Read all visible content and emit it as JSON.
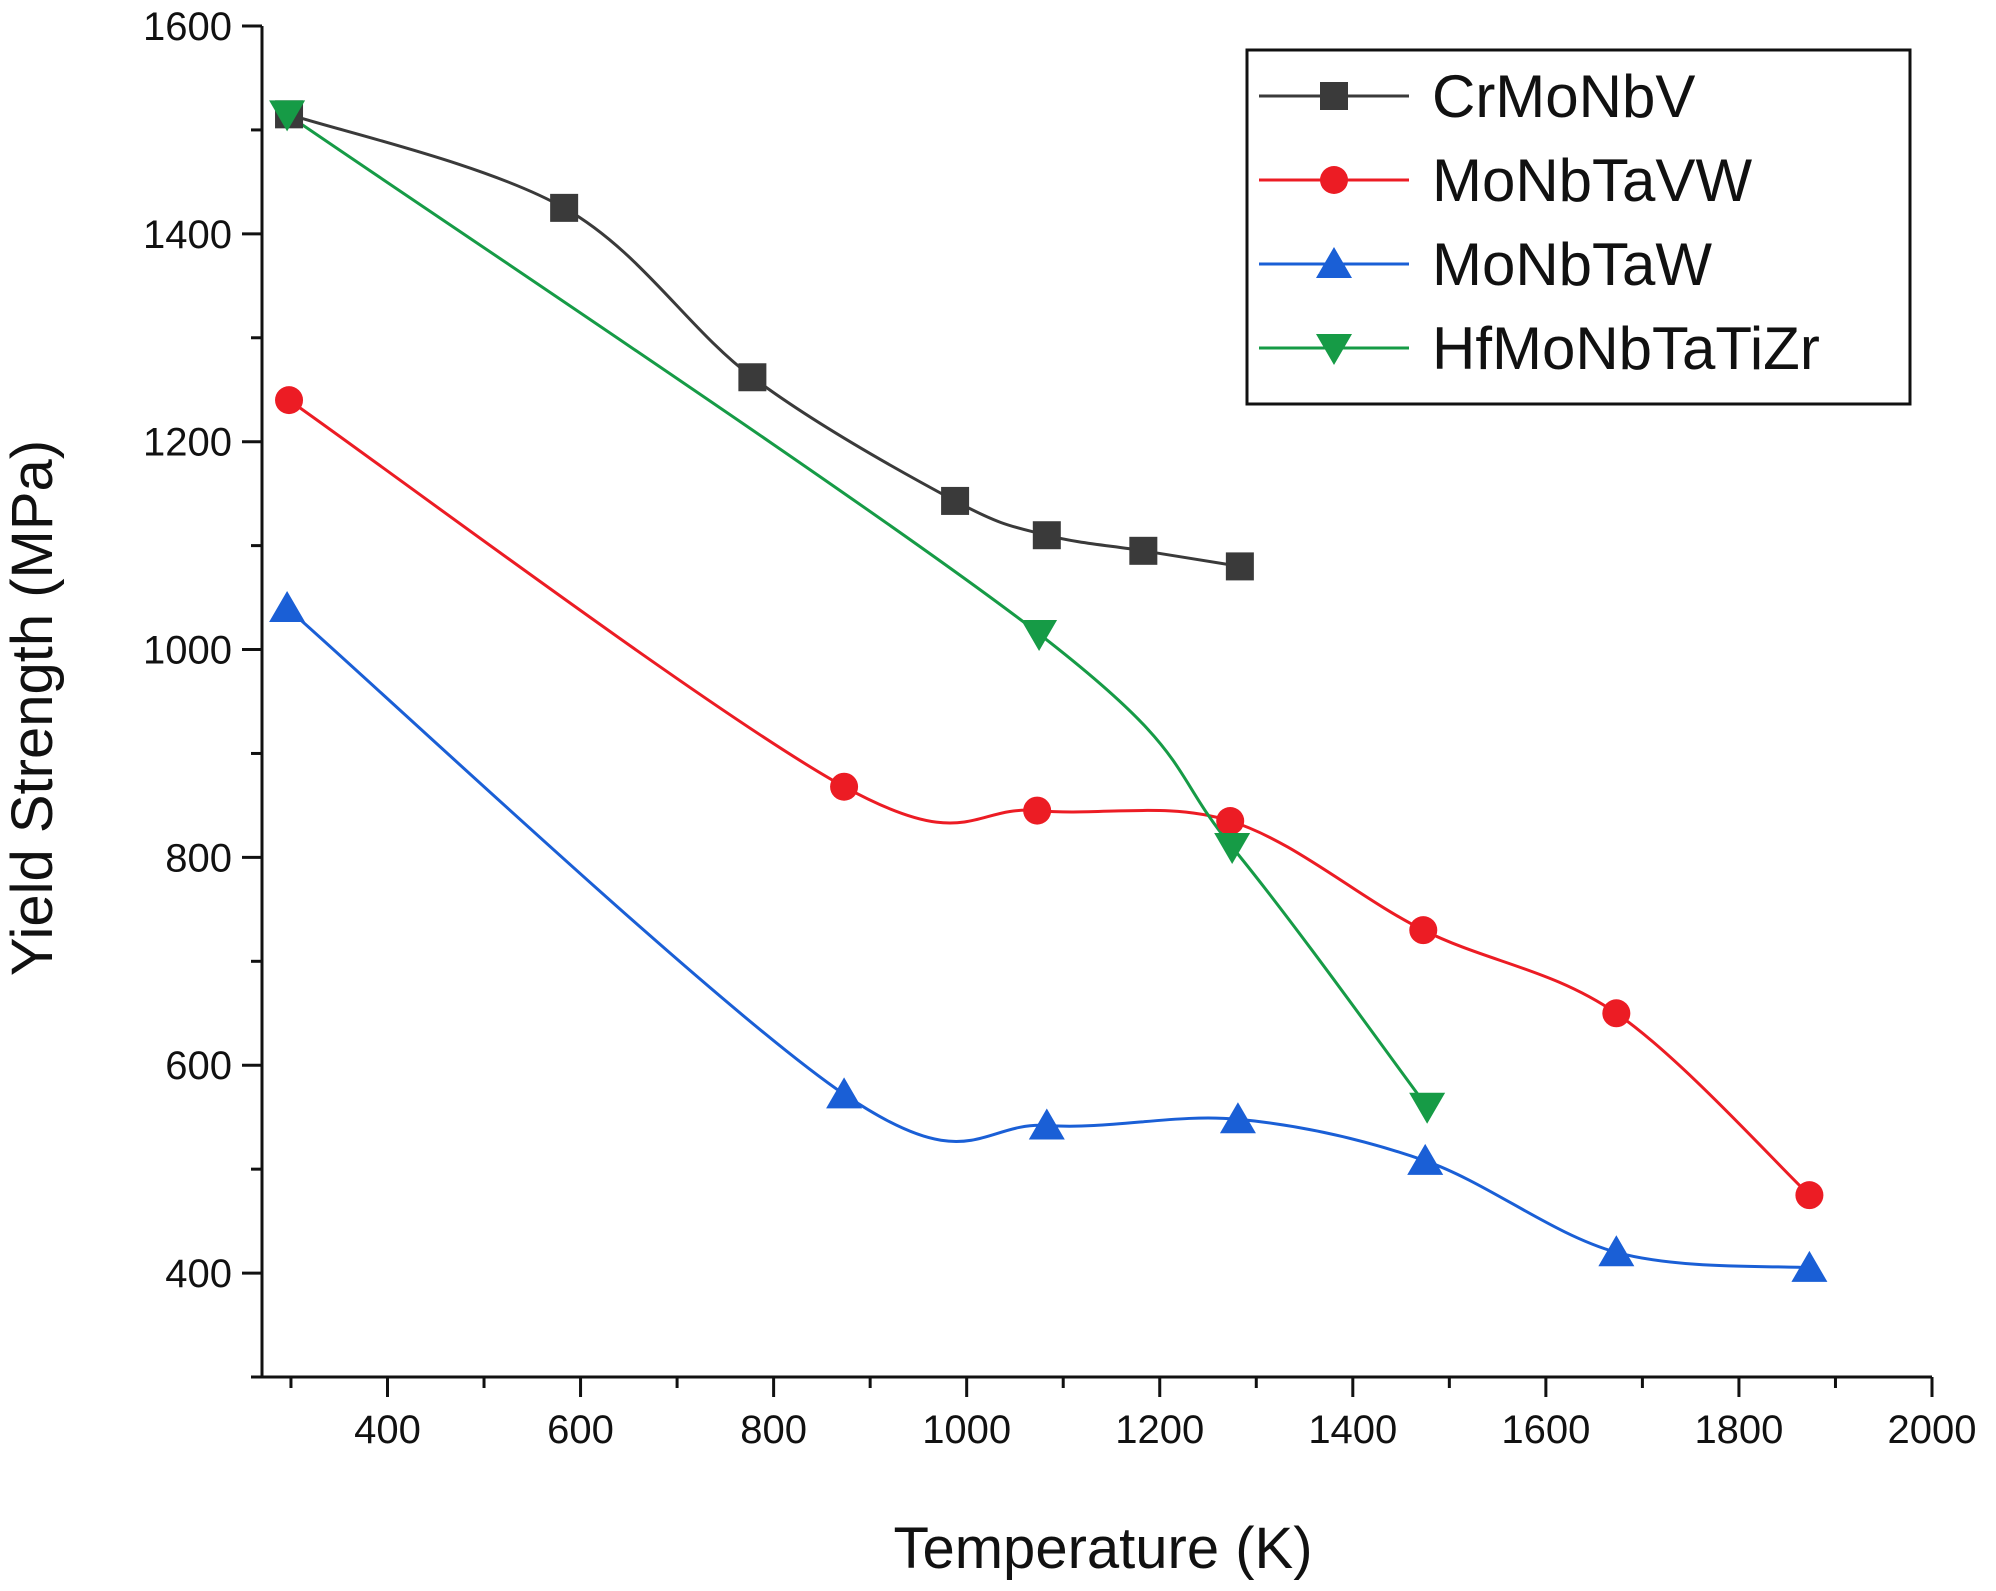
{
  "chart_data": {
    "type": "line",
    "xlabel": "Temperature (K)",
    "ylabel": "Yield Strength (MPa)",
    "xlim": [
      270,
      2000
    ],
    "ylim": [
      300,
      1600
    ],
    "xticks": [
      400,
      600,
      800,
      1000,
      1200,
      1400,
      1600,
      1800,
      2000
    ],
    "yticks": [
      400,
      600,
      800,
      1000,
      1200,
      1400,
      1600
    ],
    "grid": false,
    "legend_position": "top-right",
    "series": [
      {
        "name": "CrMoNbV",
        "color": "#3a3a3a",
        "marker": "square",
        "x": [
          298,
          583,
          778,
          988,
          1083,
          1183,
          1283
        ],
        "y": [
          1515,
          1425,
          1262,
          1143,
          1110,
          1095,
          1080
        ]
      },
      {
        "name": "MoNbTaVW",
        "color": "#ec1c24",
        "marker": "circle",
        "x": [
          298,
          873,
          1073,
          1273,
          1473,
          1673,
          1873
        ],
        "y": [
          1240,
          868,
          845,
          835,
          730,
          650,
          475
        ]
      },
      {
        "name": "MoNbTaW",
        "color": "#1a5fd6",
        "marker": "triangle-up",
        "x": [
          296,
          873,
          1083,
          1281,
          1475,
          1673,
          1873
        ],
        "y": [
          1040,
          572,
          542,
          548,
          508,
          420,
          405
        ]
      },
      {
        "name": "HfMoNbTaTiZr",
        "color": "#169b46",
        "marker": "triangle-down",
        "x": [
          296,
          1075,
          1275,
          1477
        ],
        "y": [
          1515,
          1015,
          810,
          560
        ]
      }
    ]
  }
}
